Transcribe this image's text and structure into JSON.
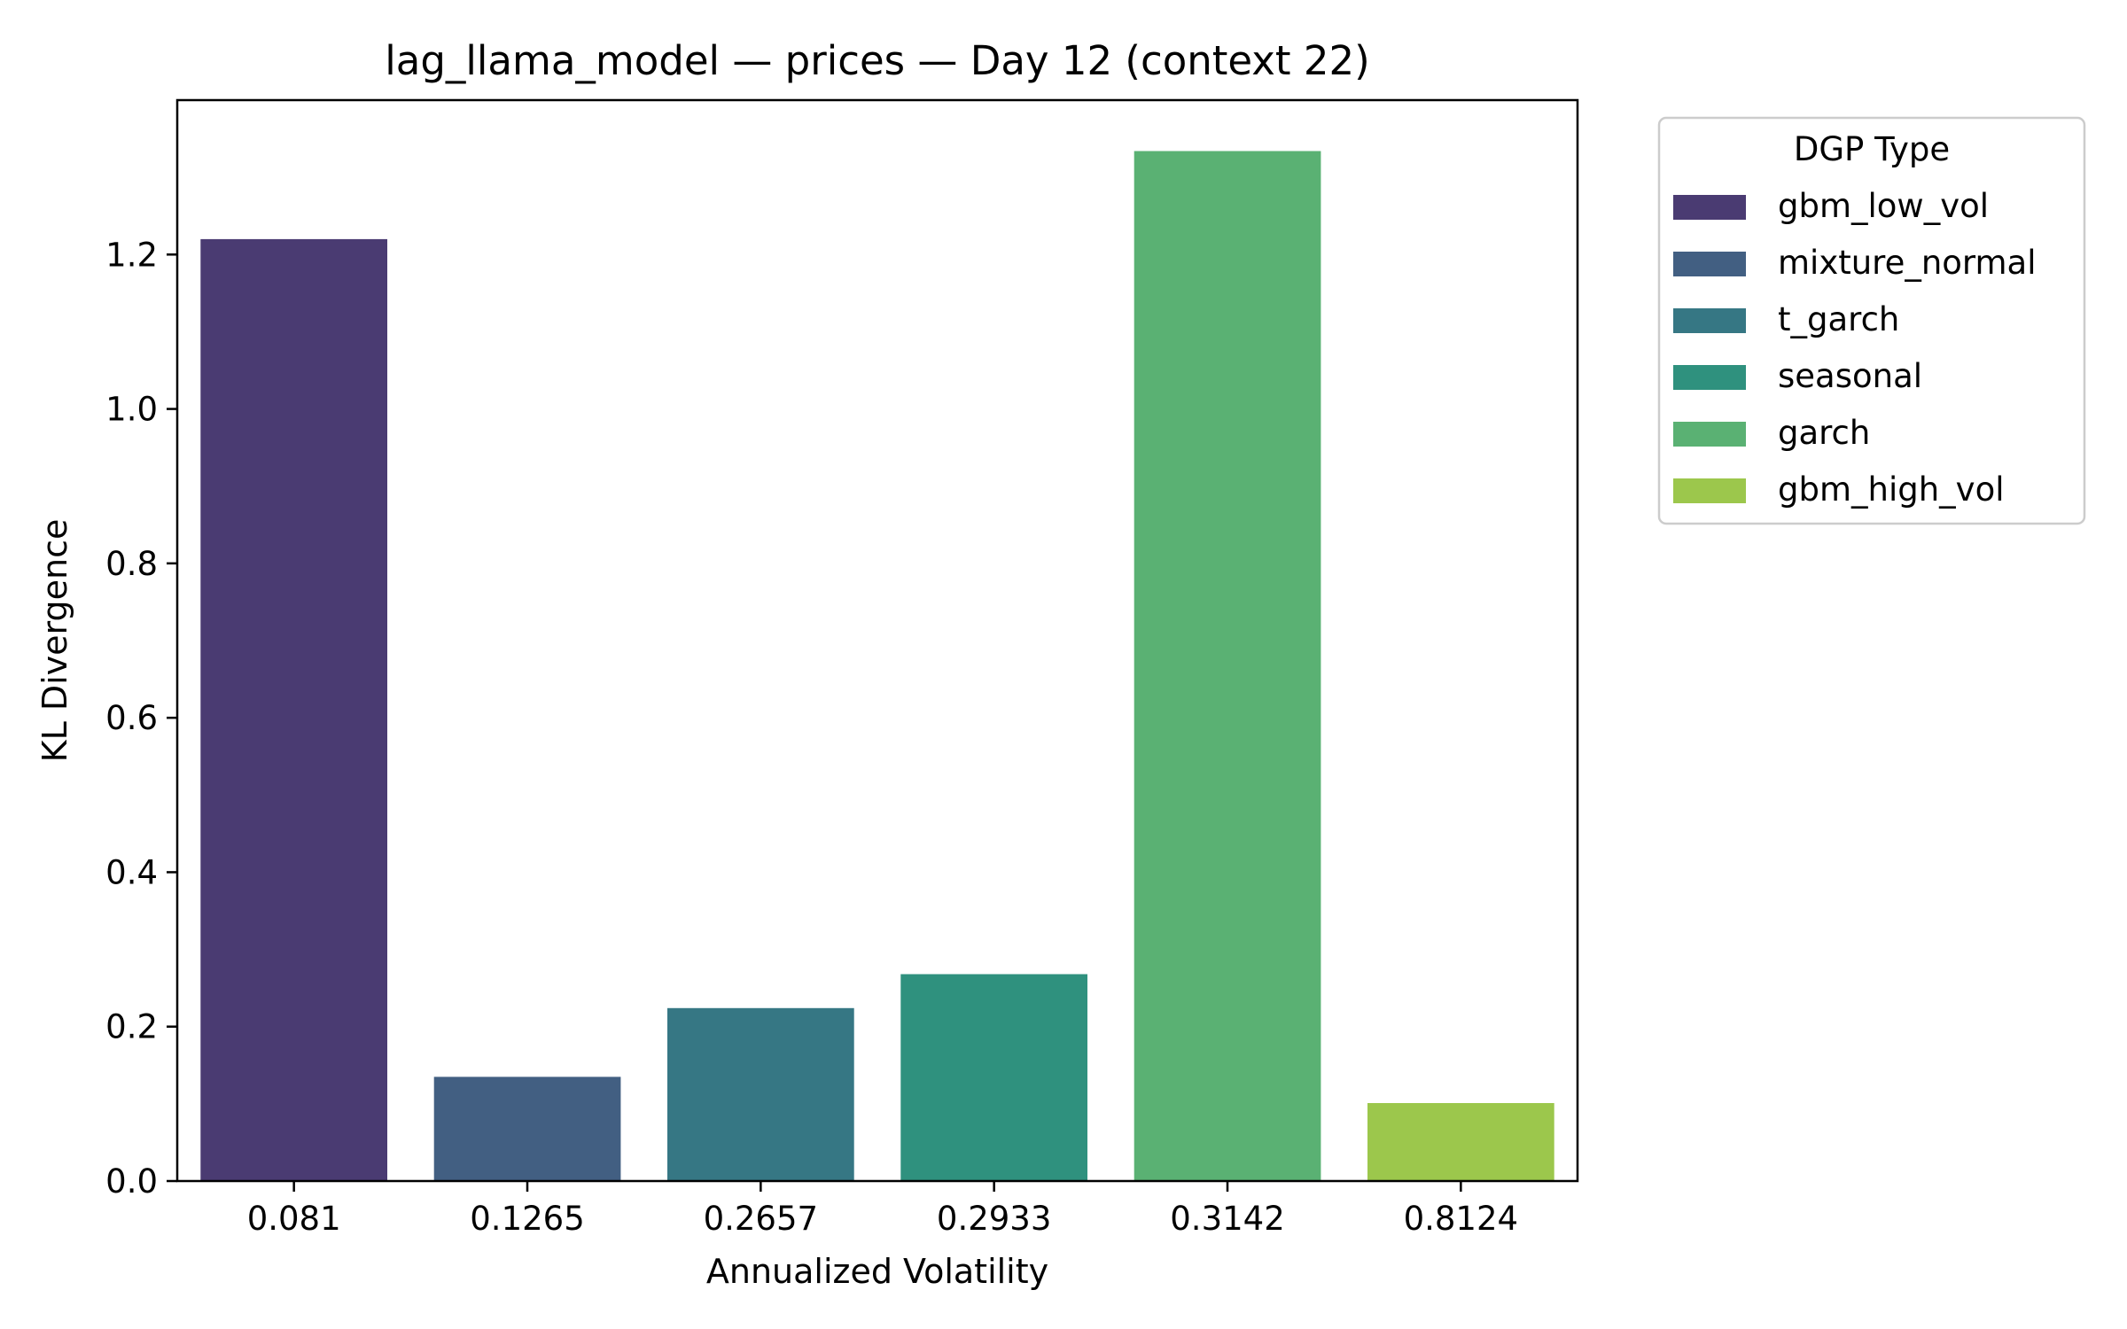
{
  "chart_data": {
    "type": "bar",
    "title": "lag_llama_model — prices — Day 12 (context 22)",
    "xlabel": "Annualized Volatility",
    "ylabel": "KL Divergence",
    "categories": [
      "0.081",
      "0.1265",
      "0.2657",
      "0.2933",
      "0.3142",
      "0.8124"
    ],
    "values": [
      1.22,
      0.135,
      0.224,
      0.268,
      1.334,
      0.101
    ],
    "bar_series": [
      "gbm_low_vol",
      "mixture_normal",
      "t_garch",
      "seasonal",
      "garch",
      "gbm_high_vol"
    ],
    "ylim": [
      0,
      1.4
    ],
    "yticks": [
      "0.0",
      "0.2",
      "0.4",
      "0.6",
      "0.8",
      "1.0",
      "1.2"
    ],
    "grid": false,
    "legend": {
      "title": "DGP Type",
      "placement": "outside-right-top",
      "entries": [
        {
          "name": "gbm_low_vol",
          "color": "#4a3b72"
        },
        {
          "name": "mixture_normal",
          "color": "#425f82"
        },
        {
          "name": "t_garch",
          "color": "#367784"
        },
        {
          "name": "seasonal",
          "color": "#2f917e"
        },
        {
          "name": "garch",
          "color": "#5ab173"
        },
        {
          "name": "gbm_high_vol",
          "color": "#9cc74c"
        }
      ]
    }
  }
}
